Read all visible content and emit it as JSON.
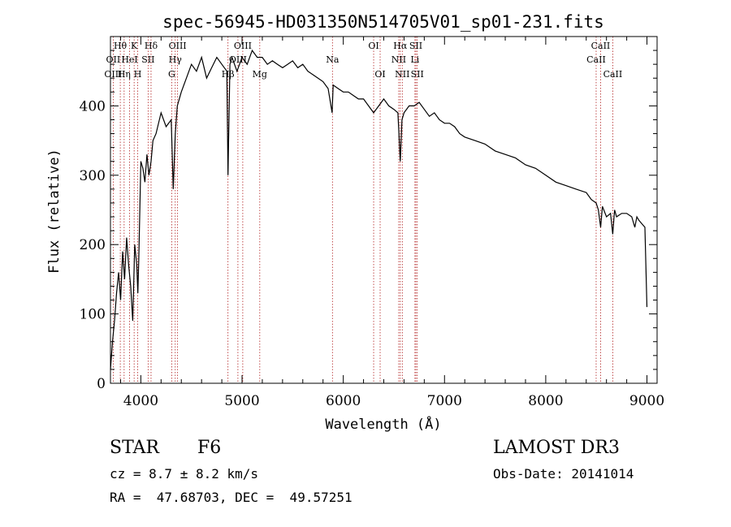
{
  "chart_data": {
    "type": "line",
    "title": "spec-56945-HD031350N514705V01_sp01-231.fits",
    "xlabel": "Wavelength (Å)",
    "ylabel": "Flux (relative)",
    "xlim": [
      3700,
      9100
    ],
    "ylim": [
      0,
      500
    ],
    "xticks": [
      4000,
      5000,
      6000,
      7000,
      8000,
      9000
    ],
    "yticks": [
      0,
      100,
      200,
      300,
      400
    ],
    "grid": false,
    "series": [
      {
        "x": [
          3700,
          3720,
          3740,
          3760,
          3780,
          3800,
          3820,
          3840,
          3860,
          3880,
          3900,
          3920,
          3940,
          3960,
          3970,
          3980,
          4000,
          4020,
          4040,
          4060,
          4080,
          4101,
          4120,
          4150,
          4200,
          4250,
          4300,
          4320,
          4340,
          4360,
          4400,
          4450,
          4500,
          4550,
          4600,
          4650,
          4700,
          4750,
          4800,
          4850,
          4861,
          4880,
          4900,
          4950,
          5000,
          5050,
          5100,
          5150,
          5200,
          5250,
          5300,
          5350,
          5400,
          5450,
          5500,
          5550,
          5600,
          5650,
          5700,
          5750,
          5800,
          5850,
          5890,
          5900,
          5950,
          6000,
          6050,
          6100,
          6150,
          6200,
          6250,
          6300,
          6350,
          6400,
          6450,
          6500,
          6540,
          6563,
          6580,
          6600,
          6650,
          6700,
          6750,
          6800,
          6850,
          6900,
          6950,
          7000,
          7050,
          7100,
          7150,
          7200,
          7300,
          7400,
          7500,
          7600,
          7700,
          7800,
          7900,
          8000,
          8100,
          8200,
          8300,
          8400,
          8450,
          8498,
          8520,
          8542,
          8560,
          8600,
          8640,
          8662,
          8680,
          8700,
          8750,
          8800,
          8850,
          8880,
          8900,
          8920,
          8950,
          8980,
          9000
        ],
        "y": [
          20,
          60,
          90,
          130,
          160,
          120,
          190,
          150,
          210,
          170,
          140,
          90,
          200,
          170,
          130,
          180,
          320,
          310,
          290,
          330,
          300,
          320,
          350,
          360,
          390,
          370,
          380,
          280,
          360,
          400,
          420,
          440,
          460,
          450,
          470,
          440,
          455,
          470,
          460,
          450,
          300,
          460,
          470,
          450,
          470,
          460,
          480,
          470,
          470,
          460,
          465,
          460,
          455,
          460,
          465,
          455,
          460,
          450,
          445,
          440,
          435,
          425,
          390,
          430,
          425,
          420,
          420,
          415,
          410,
          410,
          400,
          390,
          400,
          410,
          400,
          395,
          390,
          320,
          380,
          390,
          400,
          400,
          405,
          395,
          385,
          390,
          380,
          375,
          375,
          370,
          360,
          355,
          350,
          345,
          335,
          330,
          325,
          315,
          310,
          300,
          290,
          285,
          280,
          275,
          265,
          260,
          250,
          225,
          255,
          240,
          245,
          215,
          250,
          240,
          245,
          245,
          240,
          225,
          240,
          235,
          230,
          225,
          110
        ]
      }
    ],
    "line_labels": [
      {
        "label": "Hθ",
        "x": 3797,
        "row": 1
      },
      {
        "label": "OII",
        "x": 3727,
        "row": 2
      },
      {
        "label": "OIII",
        "x": 3727,
        "row": 3
      },
      {
        "label": "K",
        "x": 3934,
        "row": 1
      },
      {
        "label": "HeI",
        "x": 3889,
        "row": 2
      },
      {
        "label": "Hη",
        "x": 3835,
        "row": 3
      },
      {
        "label": "Hδ",
        "x": 4101,
        "row": 1
      },
      {
        "label": "SII",
        "x": 4072,
        "row": 2
      },
      {
        "label": "H",
        "x": 3969,
        "row": 3
      },
      {
        "label": "OIII",
        "x": 4363,
        "row": 1
      },
      {
        "label": "Hγ",
        "x": 4340,
        "row": 2
      },
      {
        "label": "G",
        "x": 4305,
        "row": 3
      },
      {
        "label": "OIII",
        "x": 5007,
        "row": 1
      },
      {
        "label": "OIII",
        "x": 4959,
        "row": 2
      },
      {
        "label": "Hβ",
        "x": 4861,
        "row": 3
      },
      {
        "label": "Mg",
        "x": 5175,
        "row": 3
      },
      {
        "label": "Na",
        "x": 5893,
        "row": 2
      },
      {
        "label": "OI",
        "x": 6300,
        "row": 1
      },
      {
        "label": "OI",
        "x": 6364,
        "row": 3
      },
      {
        "label": "Hα",
        "x": 6563,
        "row": 1
      },
      {
        "label": "NII",
        "x": 6548,
        "row": 2
      },
      {
        "label": "NII",
        "x": 6583,
        "row": 3
      },
      {
        "label": "SII",
        "x": 6717,
        "row": 1
      },
      {
        "label": "Li",
        "x": 6708,
        "row": 2
      },
      {
        "label": "SII",
        "x": 6731,
        "row": 3
      },
      {
        "label": "CaII",
        "x": 8542,
        "row": 1
      },
      {
        "label": "CaII",
        "x": 8498,
        "row": 2
      },
      {
        "label": "CaII",
        "x": 8662,
        "row": 3
      }
    ]
  },
  "info": {
    "class_label": "STAR",
    "subclass": "F6",
    "survey": "LAMOST DR3",
    "cz": "cz = 8.7 ± 8.2 km/s",
    "obs_date": "Obs-Date: 20141014",
    "coords": "RA =  47.68703, DEC =  49.57251"
  }
}
